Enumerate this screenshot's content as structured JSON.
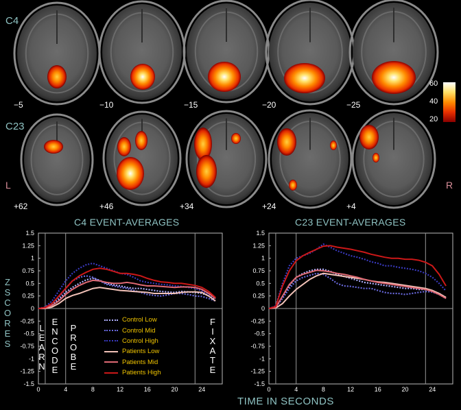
{
  "brain_rows": {
    "c4": {
      "label": "C4",
      "slices": [
        "−5",
        "−10",
        "−15",
        "−20",
        "−25"
      ]
    },
    "c23": {
      "label": "C23",
      "slices": [
        "+62",
        "+46",
        "+34",
        "+24",
        "+4"
      ],
      "left_marker": "L",
      "right_marker": "R"
    }
  },
  "colorbar": {
    "ticks": [
      "60",
      "40",
      "20"
    ],
    "colors": [
      "#ffffff",
      "#ffe066",
      "#ff8c00",
      "#e83000",
      "#8a0000"
    ]
  },
  "y_axis_label": [
    "Z",
    "S",
    "C",
    "O",
    "R",
    "E",
    "S"
  ],
  "x_axis_title": "TIME IN SECONDS",
  "phase_labels": {
    "learn": [
      "L",
      "E",
      "A",
      "R",
      "N"
    ],
    "encode": [
      "E",
      "N",
      "C",
      "O",
      "D",
      "E"
    ],
    "probe": [
      "P",
      "R",
      "O",
      "B",
      "E"
    ],
    "fixate": [
      "F",
      "I",
      "X",
      "A",
      "T",
      "E"
    ]
  },
  "legend": [
    {
      "label": "Control Low",
      "color": "#b0b0ff",
      "style": "dotted"
    },
    {
      "label": "Control Mid",
      "color": "#6a6ae0",
      "style": "dotted"
    },
    {
      "label": "Control High",
      "color": "#3a3ac0",
      "style": "dotted"
    },
    {
      "label": "Patients Low",
      "color": "#f2c2b8",
      "style": "solid"
    },
    {
      "label": "Patients Mid",
      "color": "#e06a74",
      "style": "solid"
    },
    {
      "label": "Patients High",
      "color": "#cc1818",
      "style": "solid"
    }
  ],
  "chart_data": [
    {
      "type": "line",
      "title": "C4 EVENT-AVERAGES",
      "xlabel": "TIME IN SECONDS",
      "ylabel": "ZSCORES",
      "xlim": [
        0,
        27
      ],
      "ylim": [
        -1.5,
        1.5
      ],
      "x_ticks": [
        "0",
        "4",
        "8",
        "12",
        "16",
        "20",
        "24"
      ],
      "y_ticks": [
        "1.5",
        "1.25",
        "1",
        "0.75",
        "0.5",
        "0.25",
        "0",
        "-0.25",
        "-0.5",
        "-0.75",
        "-1",
        "-1.25",
        "-1.5"
      ],
      "vlines": [
        1,
        4,
        23
      ],
      "x": [
        0,
        1,
        2,
        3,
        4,
        5,
        6,
        7,
        8,
        9,
        10,
        11,
        12,
        13,
        14,
        15,
        16,
        17,
        18,
        19,
        20,
        21,
        22,
        23,
        24,
        25,
        26
      ],
      "series": [
        {
          "name": "Control Low",
          "values": [
            0,
            0.02,
            0.08,
            0.18,
            0.32,
            0.42,
            0.5,
            0.57,
            0.6,
            0.56,
            0.5,
            0.47,
            0.45,
            0.42,
            0.4,
            0.4,
            0.38,
            0.36,
            0.34,
            0.33,
            0.32,
            0.34,
            0.33,
            0.32,
            0.3,
            0.26,
            0.18
          ]
        },
        {
          "name": "Control Mid",
          "values": [
            0,
            0.02,
            0.1,
            0.22,
            0.4,
            0.55,
            0.62,
            0.65,
            0.62,
            0.55,
            0.48,
            0.45,
            0.42,
            0.4,
            0.36,
            0.32,
            0.28,
            0.26,
            0.25,
            0.27,
            0.3,
            0.3,
            0.28,
            0.25,
            0.24,
            0.2,
            0.15
          ]
        },
        {
          "name": "Control High",
          "values": [
            0,
            0.03,
            0.15,
            0.35,
            0.55,
            0.7,
            0.8,
            0.87,
            0.9,
            0.85,
            0.8,
            0.75,
            0.7,
            0.68,
            0.62,
            0.55,
            0.52,
            0.5,
            0.48,
            0.47,
            0.45,
            0.44,
            0.42,
            0.4,
            0.35,
            0.28,
            0.2
          ]
        },
        {
          "name": "Patients Low",
          "values": [
            0,
            0.0,
            0.03,
            0.1,
            0.2,
            0.26,
            0.3,
            0.35,
            0.4,
            0.42,
            0.4,
            0.38,
            0.36,
            0.35,
            0.34,
            0.33,
            0.32,
            0.3,
            0.3,
            0.3,
            0.3,
            0.32,
            0.33,
            0.33,
            0.32,
            0.25,
            0.15
          ]
        },
        {
          "name": "Patients Mid",
          "values": [
            0,
            0.01,
            0.06,
            0.15,
            0.28,
            0.38,
            0.46,
            0.52,
            0.56,
            0.55,
            0.52,
            0.5,
            0.5,
            0.52,
            0.5,
            0.47,
            0.45,
            0.45,
            0.44,
            0.43,
            0.42,
            0.43,
            0.43,
            0.42,
            0.38,
            0.3,
            0.2
          ]
        },
        {
          "name": "Patients High",
          "values": [
            0,
            0.02,
            0.1,
            0.25,
            0.4,
            0.55,
            0.65,
            0.72,
            0.78,
            0.8,
            0.78,
            0.74,
            0.7,
            0.7,
            0.68,
            0.65,
            0.6,
            0.56,
            0.53,
            0.52,
            0.5,
            0.5,
            0.48,
            0.46,
            0.42,
            0.34,
            0.22
          ]
        }
      ]
    },
    {
      "type": "line",
      "title": "C23 EVENT-AVERAGES",
      "xlabel": "TIME IN SECONDS",
      "ylabel": "",
      "xlim": [
        0,
        27
      ],
      "ylim": [
        -1.5,
        1.5
      ],
      "x_ticks": [
        "0",
        "4",
        "8",
        "12",
        "16",
        "20",
        "24"
      ],
      "y_ticks": [
        "1.5",
        "1.25",
        "1",
        "0.75",
        "0.5",
        "0.25",
        "0",
        "-0.25",
        "-0.5",
        "-0.75",
        "-1",
        "-1.25",
        "-1.5"
      ],
      "vlines": [
        1,
        4,
        23
      ],
      "x": [
        0,
        1,
        2,
        3,
        4,
        5,
        6,
        7,
        8,
        9,
        10,
        11,
        12,
        13,
        14,
        15,
        16,
        17,
        18,
        19,
        20,
        21,
        22,
        23,
        24,
        25,
        26
      ],
      "series": [
        {
          "name": "Control Low",
          "values": [
            0,
            0.02,
            0.22,
            0.45,
            0.62,
            0.7,
            0.75,
            0.78,
            0.78,
            0.74,
            0.68,
            0.64,
            0.6,
            0.56,
            0.52,
            0.5,
            0.48,
            0.46,
            0.44,
            0.42,
            0.4,
            0.4,
            0.38,
            0.38,
            0.35,
            0.3,
            0.22
          ]
        },
        {
          "name": "Control Mid",
          "values": [
            0,
            0.02,
            0.2,
            0.4,
            0.55,
            0.62,
            0.66,
            0.7,
            0.68,
            0.6,
            0.5,
            0.45,
            0.44,
            0.42,
            0.4,
            0.4,
            0.36,
            0.32,
            0.3,
            0.3,
            0.28,
            0.3,
            0.32,
            0.34,
            0.33,
            0.28,
            0.2
          ]
        },
        {
          "name": "Control High",
          "values": [
            0,
            0.05,
            0.5,
            0.85,
            1.0,
            1.05,
            1.1,
            1.18,
            1.28,
            1.22,
            1.15,
            1.1,
            1.05,
            1.02,
            0.98,
            0.93,
            0.9,
            0.85,
            0.85,
            0.82,
            0.8,
            0.78,
            0.75,
            0.7,
            0.62,
            0.5,
            0.35
          ]
        },
        {
          "name": "Patients Low",
          "values": [
            0,
            0.01,
            0.1,
            0.25,
            0.38,
            0.48,
            0.58,
            0.65,
            0.7,
            0.68,
            0.66,
            0.64,
            0.62,
            0.6,
            0.58,
            0.55,
            0.53,
            0.52,
            0.5,
            0.48,
            0.46,
            0.44,
            0.42,
            0.4,
            0.36,
            0.3,
            0.22
          ]
        },
        {
          "name": "Patients Mid",
          "values": [
            0,
            0.02,
            0.25,
            0.48,
            0.62,
            0.68,
            0.72,
            0.76,
            0.75,
            0.73,
            0.7,
            0.68,
            0.65,
            0.62,
            0.58,
            0.55,
            0.52,
            0.5,
            0.48,
            0.46,
            0.44,
            0.42,
            0.4,
            0.38,
            0.34,
            0.28,
            0.2
          ]
        },
        {
          "name": "Patients High",
          "values": [
            0,
            0.04,
            0.45,
            0.75,
            0.95,
            1.05,
            1.12,
            1.18,
            1.24,
            1.25,
            1.22,
            1.2,
            1.18,
            1.15,
            1.12,
            1.08,
            1.05,
            1.02,
            1.0,
            1.0,
            0.98,
            0.98,
            0.96,
            0.92,
            0.85,
            0.68,
            0.45
          ]
        }
      ]
    }
  ]
}
